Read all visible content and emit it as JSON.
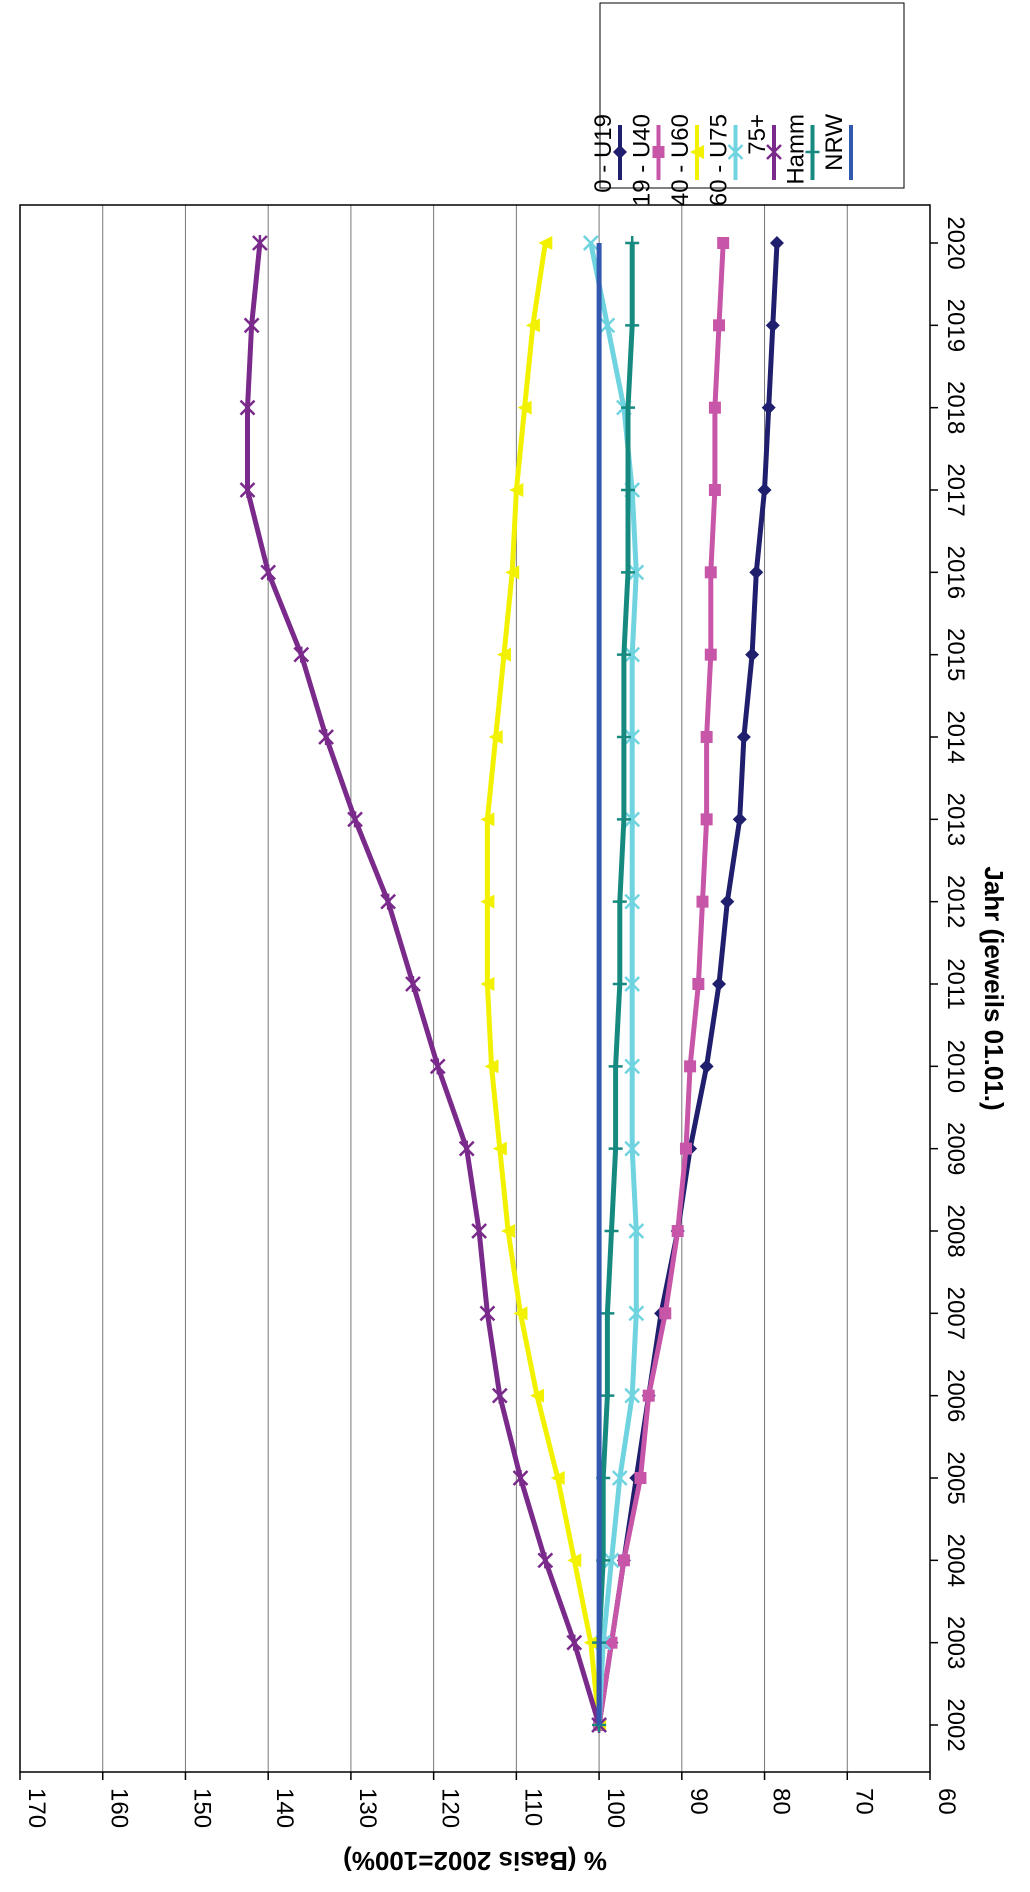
{
  "chart_data": {
    "type": "line",
    "orientation": "rotated-90-clockwise",
    "xlabel": "Jahr (jeweils 01.01.)",
    "ylabel": "% (Basis 2002=100%)",
    "x": [
      "2002",
      "2003",
      "2004",
      "2005",
      "2006",
      "2007",
      "2008",
      "2009",
      "2010",
      "2011",
      "2012",
      "2013",
      "2014",
      "2015",
      "2016",
      "2017",
      "2018",
      "2019",
      "2020"
    ],
    "ylim": [
      60,
      170
    ],
    "yticks": [
      170,
      160,
      150,
      140,
      130,
      120,
      110,
      100,
      90,
      80,
      70,
      60
    ],
    "grid": true,
    "legend_position": "top-right",
    "series": [
      {
        "name": "0 - U19",
        "color": "#1f1f6e",
        "marker": "diamond",
        "values": [
          100,
          98.5,
          97,
          95.5,
          94,
          92.5,
          90.5,
          89,
          87,
          85.5,
          84.5,
          83,
          82.5,
          81.5,
          81,
          80,
          79.5,
          79,
          78.5
        ]
      },
      {
        "name": "19 - U40",
        "color": "#c756a8",
        "marker": "square",
        "values": [
          100,
          98.5,
          97,
          95,
          94,
          92,
          90.5,
          89.5,
          89,
          88,
          87.5,
          87,
          87,
          86.5,
          86.5,
          86,
          86,
          85.5,
          85
        ]
      },
      {
        "name": "40 - U60",
        "color": "#f2f200",
        "marker": "triangle",
        "values": [
          100,
          101,
          103,
          105,
          107.5,
          109.5,
          111,
          112,
          113,
          113.5,
          113.5,
          113.5,
          112.5,
          111.5,
          110.5,
          110,
          109,
          108,
          106.5
        ]
      },
      {
        "name": "60 - U75",
        "color": "#6fd3e0",
        "marker": "x",
        "values": [
          100,
          99.5,
          98.5,
          97.5,
          96,
          95.5,
          95.5,
          96,
          96,
          96,
          96,
          96,
          96,
          96,
          95.5,
          96,
          97,
          99,
          101
        ]
      },
      {
        "name": "75+",
        "color": "#7a2a8a",
        "marker": "star",
        "values": [
          100,
          103,
          106.5,
          109.5,
          112,
          113.5,
          114.5,
          116,
          119.5,
          122.5,
          125.5,
          129.5,
          133,
          136,
          140,
          142.5,
          142.5,
          142,
          141
        ]
      },
      {
        "name": "Hamm",
        "color": "#178a80",
        "marker": "plus",
        "values": [
          100,
          100,
          99.5,
          99.5,
          99,
          99,
          98.5,
          98,
          98,
          97.5,
          97.5,
          97,
          97,
          97,
          96.5,
          96.5,
          96.5,
          96,
          96
        ]
      },
      {
        "name": "NRW",
        "color": "#3358b0",
        "marker": "none",
        "values": [
          100,
          100,
          100,
          100,
          100,
          100,
          100,
          100,
          100,
          100,
          100,
          100,
          100,
          100,
          100,
          100,
          100,
          100,
          100
        ]
      }
    ]
  }
}
